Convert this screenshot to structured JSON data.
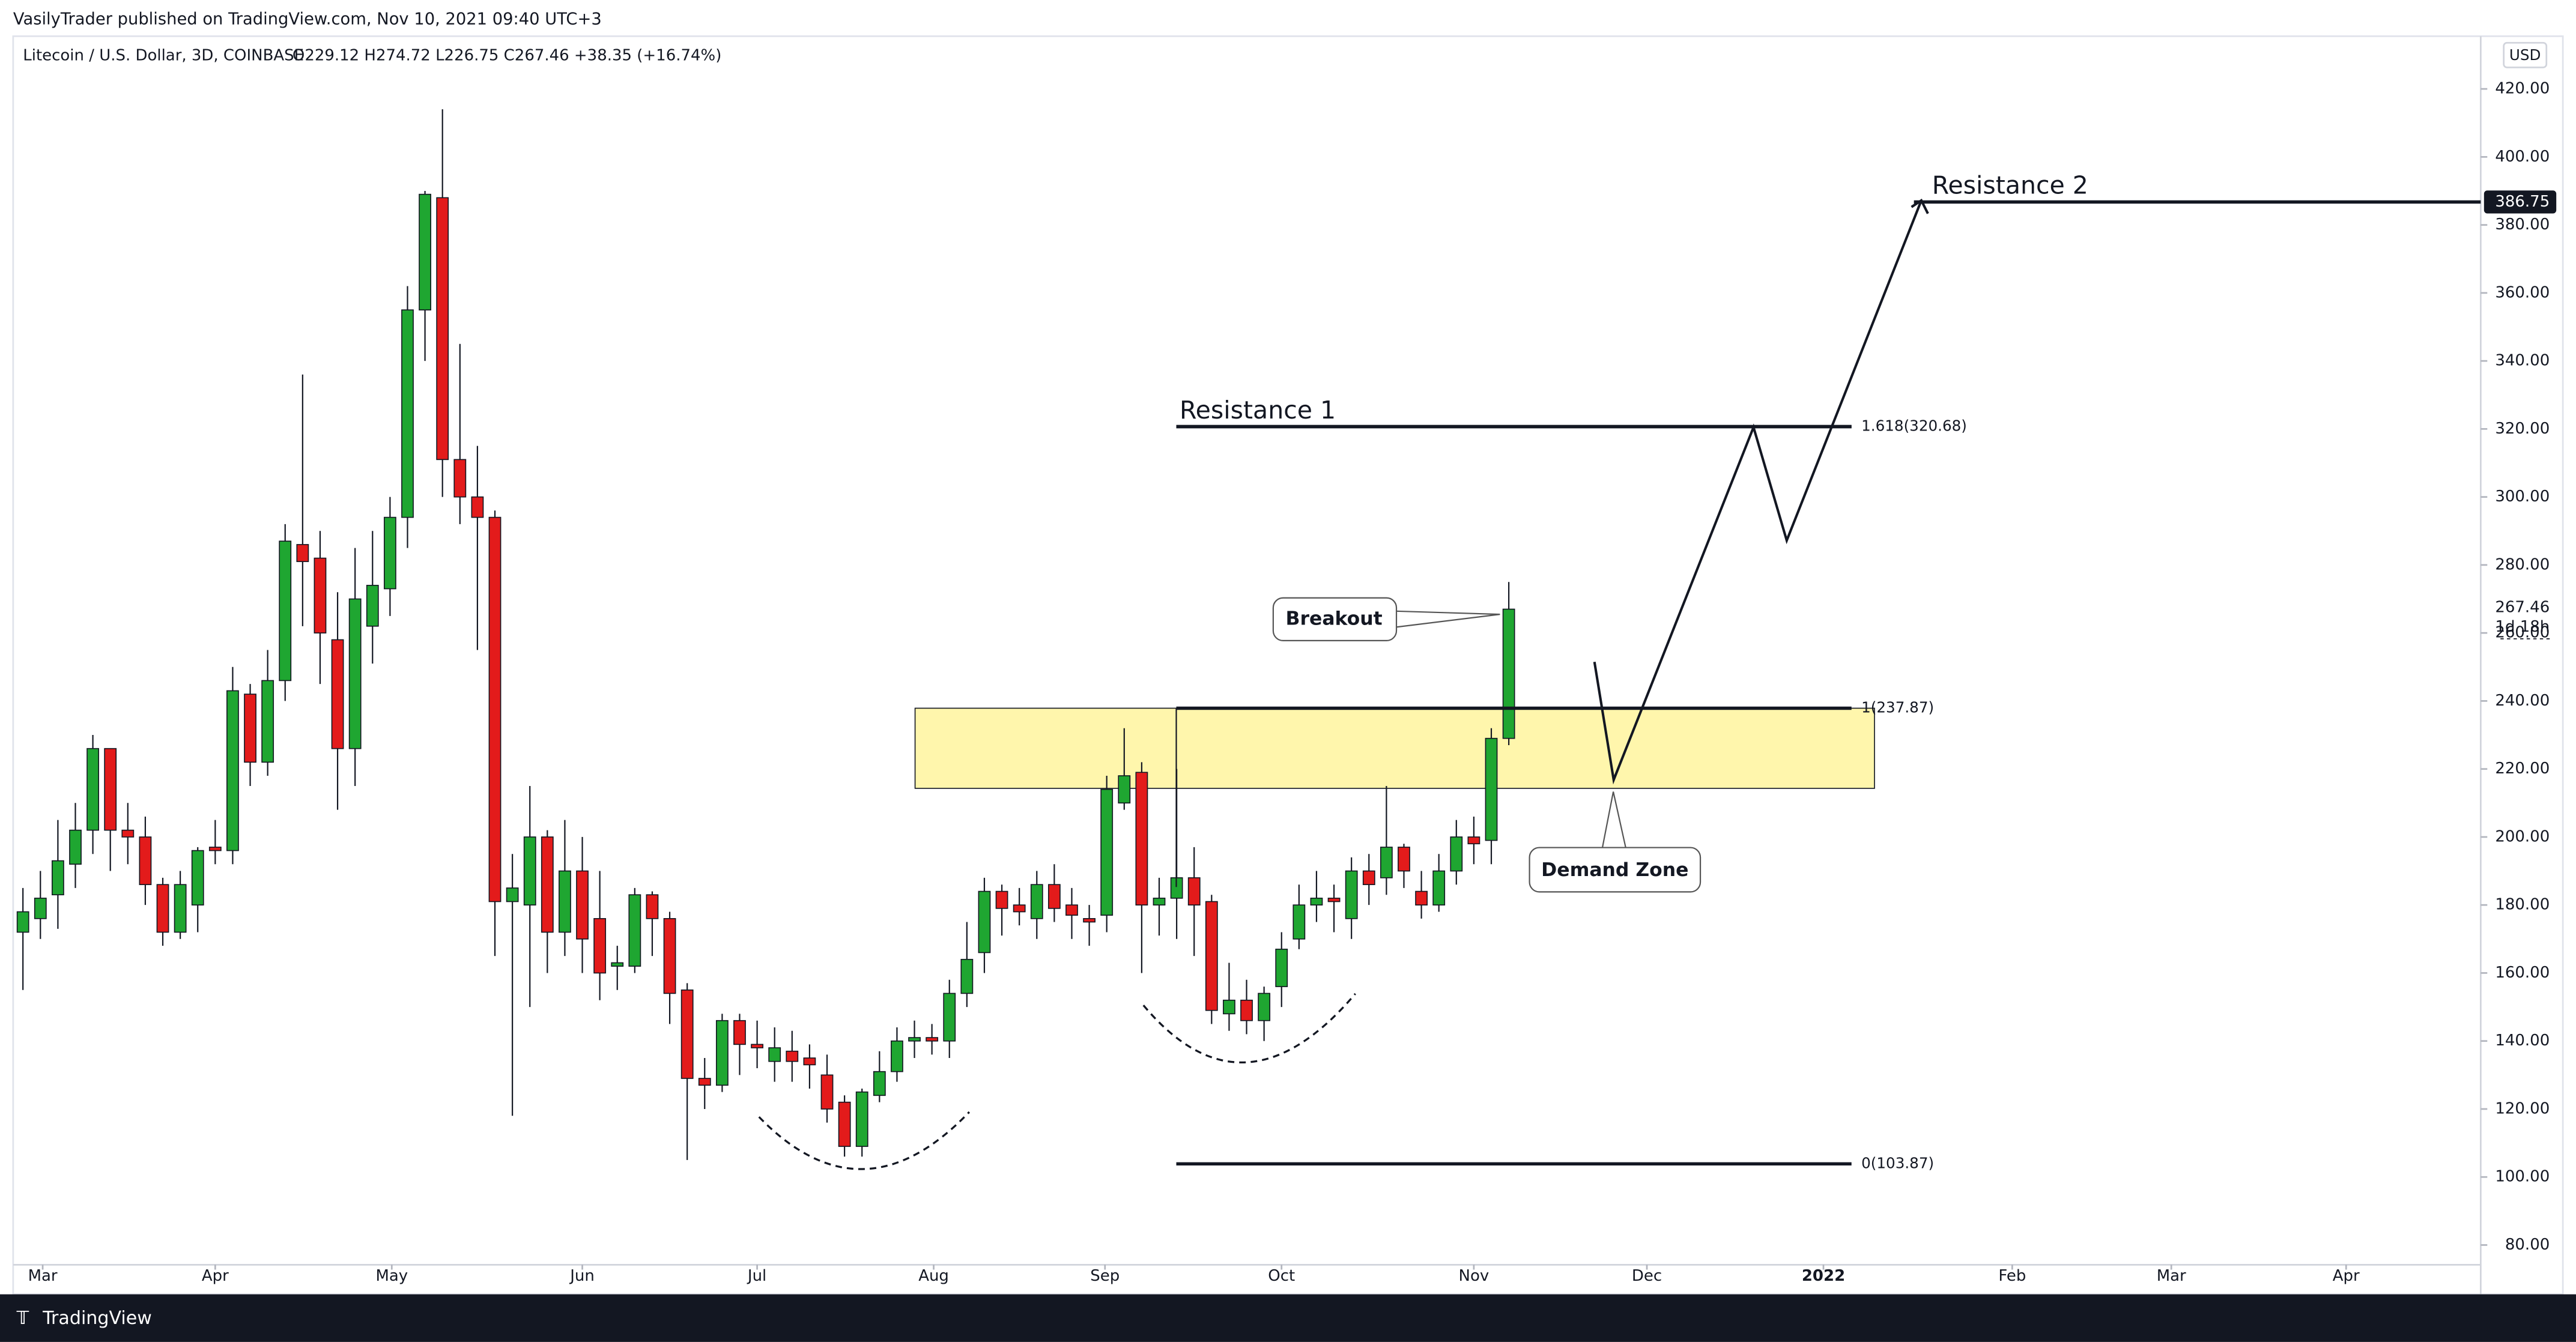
{
  "header": {
    "publisher": "VasilyTrader published on TradingView.com, Nov 10, 2021 09:40 UTC+3"
  },
  "footer": {
    "brand": "TradingView"
  },
  "chart_data": {
    "type": "candlestick",
    "title": "Litecoin / U.S. Dollar, 3D, COINBASE",
    "legend_values": "O229.12  H274.72  L226.75  C267.46  +38.35 (+16.74%)",
    "currency": "USD",
    "up_color": "#1fa631",
    "down_color": "#e31b1b",
    "open": [
      172,
      176,
      183,
      192,
      202,
      226,
      202,
      200,
      186,
      172,
      180,
      197,
      196,
      242,
      222,
      246,
      286,
      282,
      258,
      226,
      262,
      273,
      294,
      355,
      388,
      311,
      300,
      294,
      181,
      180,
      200,
      172,
      190,
      176,
      162,
      162,
      183,
      176,
      155,
      129,
      127,
      146,
      139,
      134,
      137,
      135,
      130,
      122,
      109,
      124,
      131,
      140,
      141,
      140,
      154,
      166,
      184,
      180,
      176,
      186,
      180,
      176,
      177,
      210,
      219,
      180,
      182,
      188,
      181,
      148,
      152,
      146,
      156,
      170,
      180,
      182,
      176,
      190,
      188,
      197,
      184,
      180,
      190,
      200,
      199,
      229
    ],
    "high": [
      185,
      190,
      205,
      210,
      230,
      226,
      210,
      206,
      188,
      190,
      197,
      205,
      250,
      245,
      255,
      292,
      336,
      290,
      272,
      285,
      290,
      300,
      362,
      390,
      414,
      345,
      315,
      296,
      195,
      215,
      202,
      205,
      200,
      190,
      168,
      185,
      184,
      178,
      157,
      135,
      148,
      148,
      146,
      144,
      143,
      139,
      136,
      124,
      126,
      137,
      144,
      146,
      145,
      158,
      175,
      188,
      186,
      185,
      190,
      192,
      185,
      180,
      218,
      232,
      222,
      188,
      220,
      197,
      183,
      163,
      158,
      156,
      172,
      186,
      190,
      186,
      194,
      195,
      215,
      198,
      190,
      195,
      205,
      206,
      232,
      275
    ],
    "low": [
      155,
      170,
      173,
      185,
      195,
      190,
      192,
      180,
      168,
      170,
      172,
      192,
      192,
      215,
      218,
      240,
      262,
      245,
      208,
      215,
      251,
      265,
      285,
      340,
      300,
      292,
      255,
      165,
      118,
      150,
      160,
      165,
      160,
      152,
      155,
      160,
      165,
      145,
      105,
      120,
      125,
      130,
      132,
      128,
      128,
      126,
      116,
      106,
      106,
      122,
      128,
      135,
      136,
      135,
      150,
      160,
      171,
      174,
      170,
      175,
      170,
      168,
      172,
      208,
      160,
      171,
      170,
      165,
      145,
      143,
      142,
      140,
      150,
      167,
      175,
      172,
      170,
      180,
      183,
      185,
      176,
      178,
      186,
      192,
      192,
      227
    ],
    "close": [
      178,
      182,
      193,
      202,
      226,
      202,
      200,
      186,
      172,
      186,
      196,
      196,
      243,
      222,
      246,
      287,
      281,
      260,
      226,
      270,
      274,
      294,
      355,
      389,
      311,
      300,
      294,
      181,
      185,
      200,
      172,
      190,
      170,
      160,
      163,
      183,
      176,
      154,
      129,
      127,
      146,
      139,
      138,
      138,
      134,
      133,
      120,
      109,
      125,
      131,
      140,
      141,
      140,
      154,
      164,
      184,
      179,
      178,
      186,
      179,
      177,
      175,
      214,
      218,
      180,
      182,
      188,
      180,
      149,
      152,
      146,
      154,
      167,
      180,
      182,
      181,
      190,
      186,
      197,
      190,
      180,
      190,
      200,
      198,
      229,
      267
    ],
    "xlim": [
      -0.56,
      140.6
    ],
    "xticks": [
      {
        "value": 1.13,
        "label": "Mar"
      },
      {
        "value": 11.0,
        "label": "Apr"
      },
      {
        "value": 21.1,
        "label": "May"
      },
      {
        "value": 32.0,
        "label": "Jun"
      },
      {
        "value": 42.0,
        "label": "Jul"
      },
      {
        "value": 52.1,
        "label": "Aug"
      },
      {
        "value": 61.9,
        "label": "Sep"
      },
      {
        "value": 72.0,
        "label": "Oct"
      },
      {
        "value": 83.0,
        "label": "Nov"
      },
      {
        "value": 92.9,
        "label": "Dec"
      },
      {
        "value": 103.0,
        "label": "2022"
      },
      {
        "value": 113.8,
        "label": "Feb"
      },
      {
        "value": 122.9,
        "label": "Mar"
      },
      {
        "value": 132.9,
        "label": "Apr"
      }
    ],
    "ylim": [
      74.2,
      435.5
    ],
    "yticks": [
      {
        "value": 80,
        "label": "80.00"
      },
      {
        "value": 100,
        "label": "100.00"
      },
      {
        "value": 120,
        "label": "120.00"
      },
      {
        "value": 140,
        "label": "140.00"
      },
      {
        "value": 160,
        "label": "160.00"
      },
      {
        "value": 180,
        "label": "180.00"
      },
      {
        "value": 200,
        "label": "200.00"
      },
      {
        "value": 220,
        "label": "220.00"
      },
      {
        "value": 240,
        "label": "240.00"
      },
      {
        "value": 260,
        "label": "260.00"
      },
      {
        "value": 280,
        "label": "280.00"
      },
      {
        "value": 300,
        "label": "300.00"
      },
      {
        "value": 320,
        "label": "320.00"
      },
      {
        "value": 340,
        "label": "340.00"
      },
      {
        "value": 360,
        "label": "360.00"
      },
      {
        "value": 380,
        "label": "380.00"
      },
      {
        "value": 400,
        "label": "400.00"
      },
      {
        "value": 420,
        "label": "420.00"
      }
    ],
    "price_tags": [
      {
        "value": 386.75,
        "label": "386.75"
      },
      {
        "value": 267.46,
        "label": "267.46"
      }
    ],
    "countdown": "1d 18h",
    "resistances": [
      {
        "value": 320.68,
        "label": "Resistance 1"
      },
      {
        "value": 386.75,
        "label": "Resistance 2"
      }
    ],
    "fib_levels": [
      {
        "value": 320.68,
        "label": "1.618(320.68)"
      },
      {
        "value": 237.87,
        "label": "1(237.87)"
      },
      {
        "value": 103.87,
        "label": "0(103.87)"
      }
    ],
    "zone": {
      "top": 237.87,
      "bottom": 214.3
    },
    "projection": {
      "x": [
        89.9,
        91.0,
        99.0,
        100.9,
        108.6
      ],
      "values": [
        251.5,
        216.8,
        320.5,
        287.2,
        387.2
      ]
    },
    "annotations": {
      "breakout": "Breakout",
      "demand_zone": "Demand Zone"
    }
  }
}
